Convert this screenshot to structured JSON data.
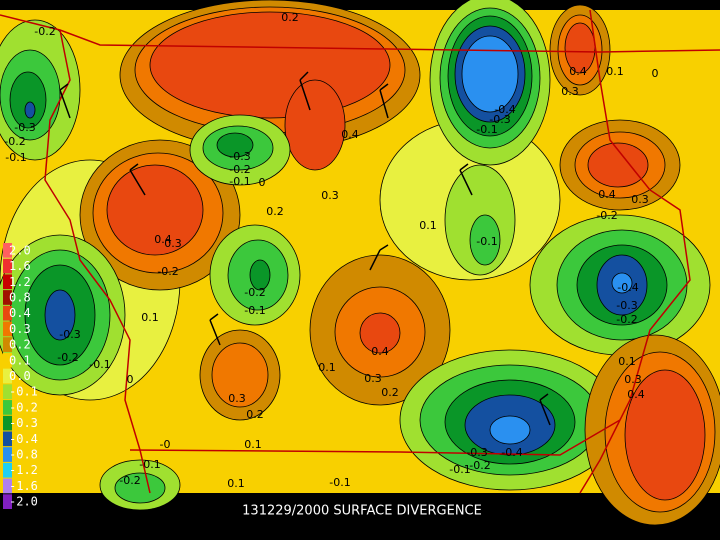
{
  "title": "131229/2000 SURFACE DIVERGENCE",
  "legend": [
    {
      "label": "2.0",
      "color": "#ff6060"
    },
    {
      "label": "1.6",
      "color": "#f03030"
    },
    {
      "label": "1.2",
      "color": "#c80000"
    },
    {
      "label": "0.8",
      "color": "#a01000"
    },
    {
      "label": "0.4",
      "color": "#e84810"
    },
    {
      "label": "0.3",
      "color": "#f07800"
    },
    {
      "label": "0.2",
      "color": "#d08a00"
    },
    {
      "label": "0.1",
      "color": "#f8d000"
    },
    {
      "label": "0.0",
      "color": "#e8f040"
    },
    {
      "label": "-0.1",
      "color": "#a0e030"
    },
    {
      "label": "-0.2",
      "color": "#3cc83c"
    },
    {
      "label": "-0.3",
      "color": "#0a9628"
    },
    {
      "label": "-0.4",
      "color": "#1450a0"
    },
    {
      "label": "-0.8",
      "color": "#2a90f0"
    },
    {
      "label": "-1.2",
      "color": "#20d0f0"
    },
    {
      "label": "-1.6",
      "color": "#b080f0"
    },
    {
      "label": "-2.0",
      "color": "#8020c0"
    }
  ],
  "contour_labels": [
    "-0.2",
    "0.2",
    "0.4",
    "0.1",
    "0",
    "0.3",
    "-0.4",
    "-0.3",
    "-0.1",
    "-0.3",
    "-0.2",
    "-0.1",
    "0.4",
    "-0.3",
    "-0.2",
    "-0.1",
    "0",
    "0.3",
    "0.2",
    "0.4",
    "0.3",
    "-0.2",
    "0.1",
    "-0.1",
    "0.4",
    "0.3",
    "-0.2",
    "-0.2",
    "-0.1",
    "0.1",
    "-0.4",
    "-0.3",
    "-0.2",
    "-0.3",
    "-0.2",
    "-0.1",
    "0.4",
    "0.1",
    "0",
    "0.3",
    "0.2",
    "0.1",
    "0.3",
    "0.4",
    "0.3",
    "0.2",
    "-0",
    "0.1",
    "-0.3",
    "-0.4",
    "-0.2",
    "-0.1",
    "-0.1",
    "0.1",
    "-0.1",
    "-0.2"
  ]
}
